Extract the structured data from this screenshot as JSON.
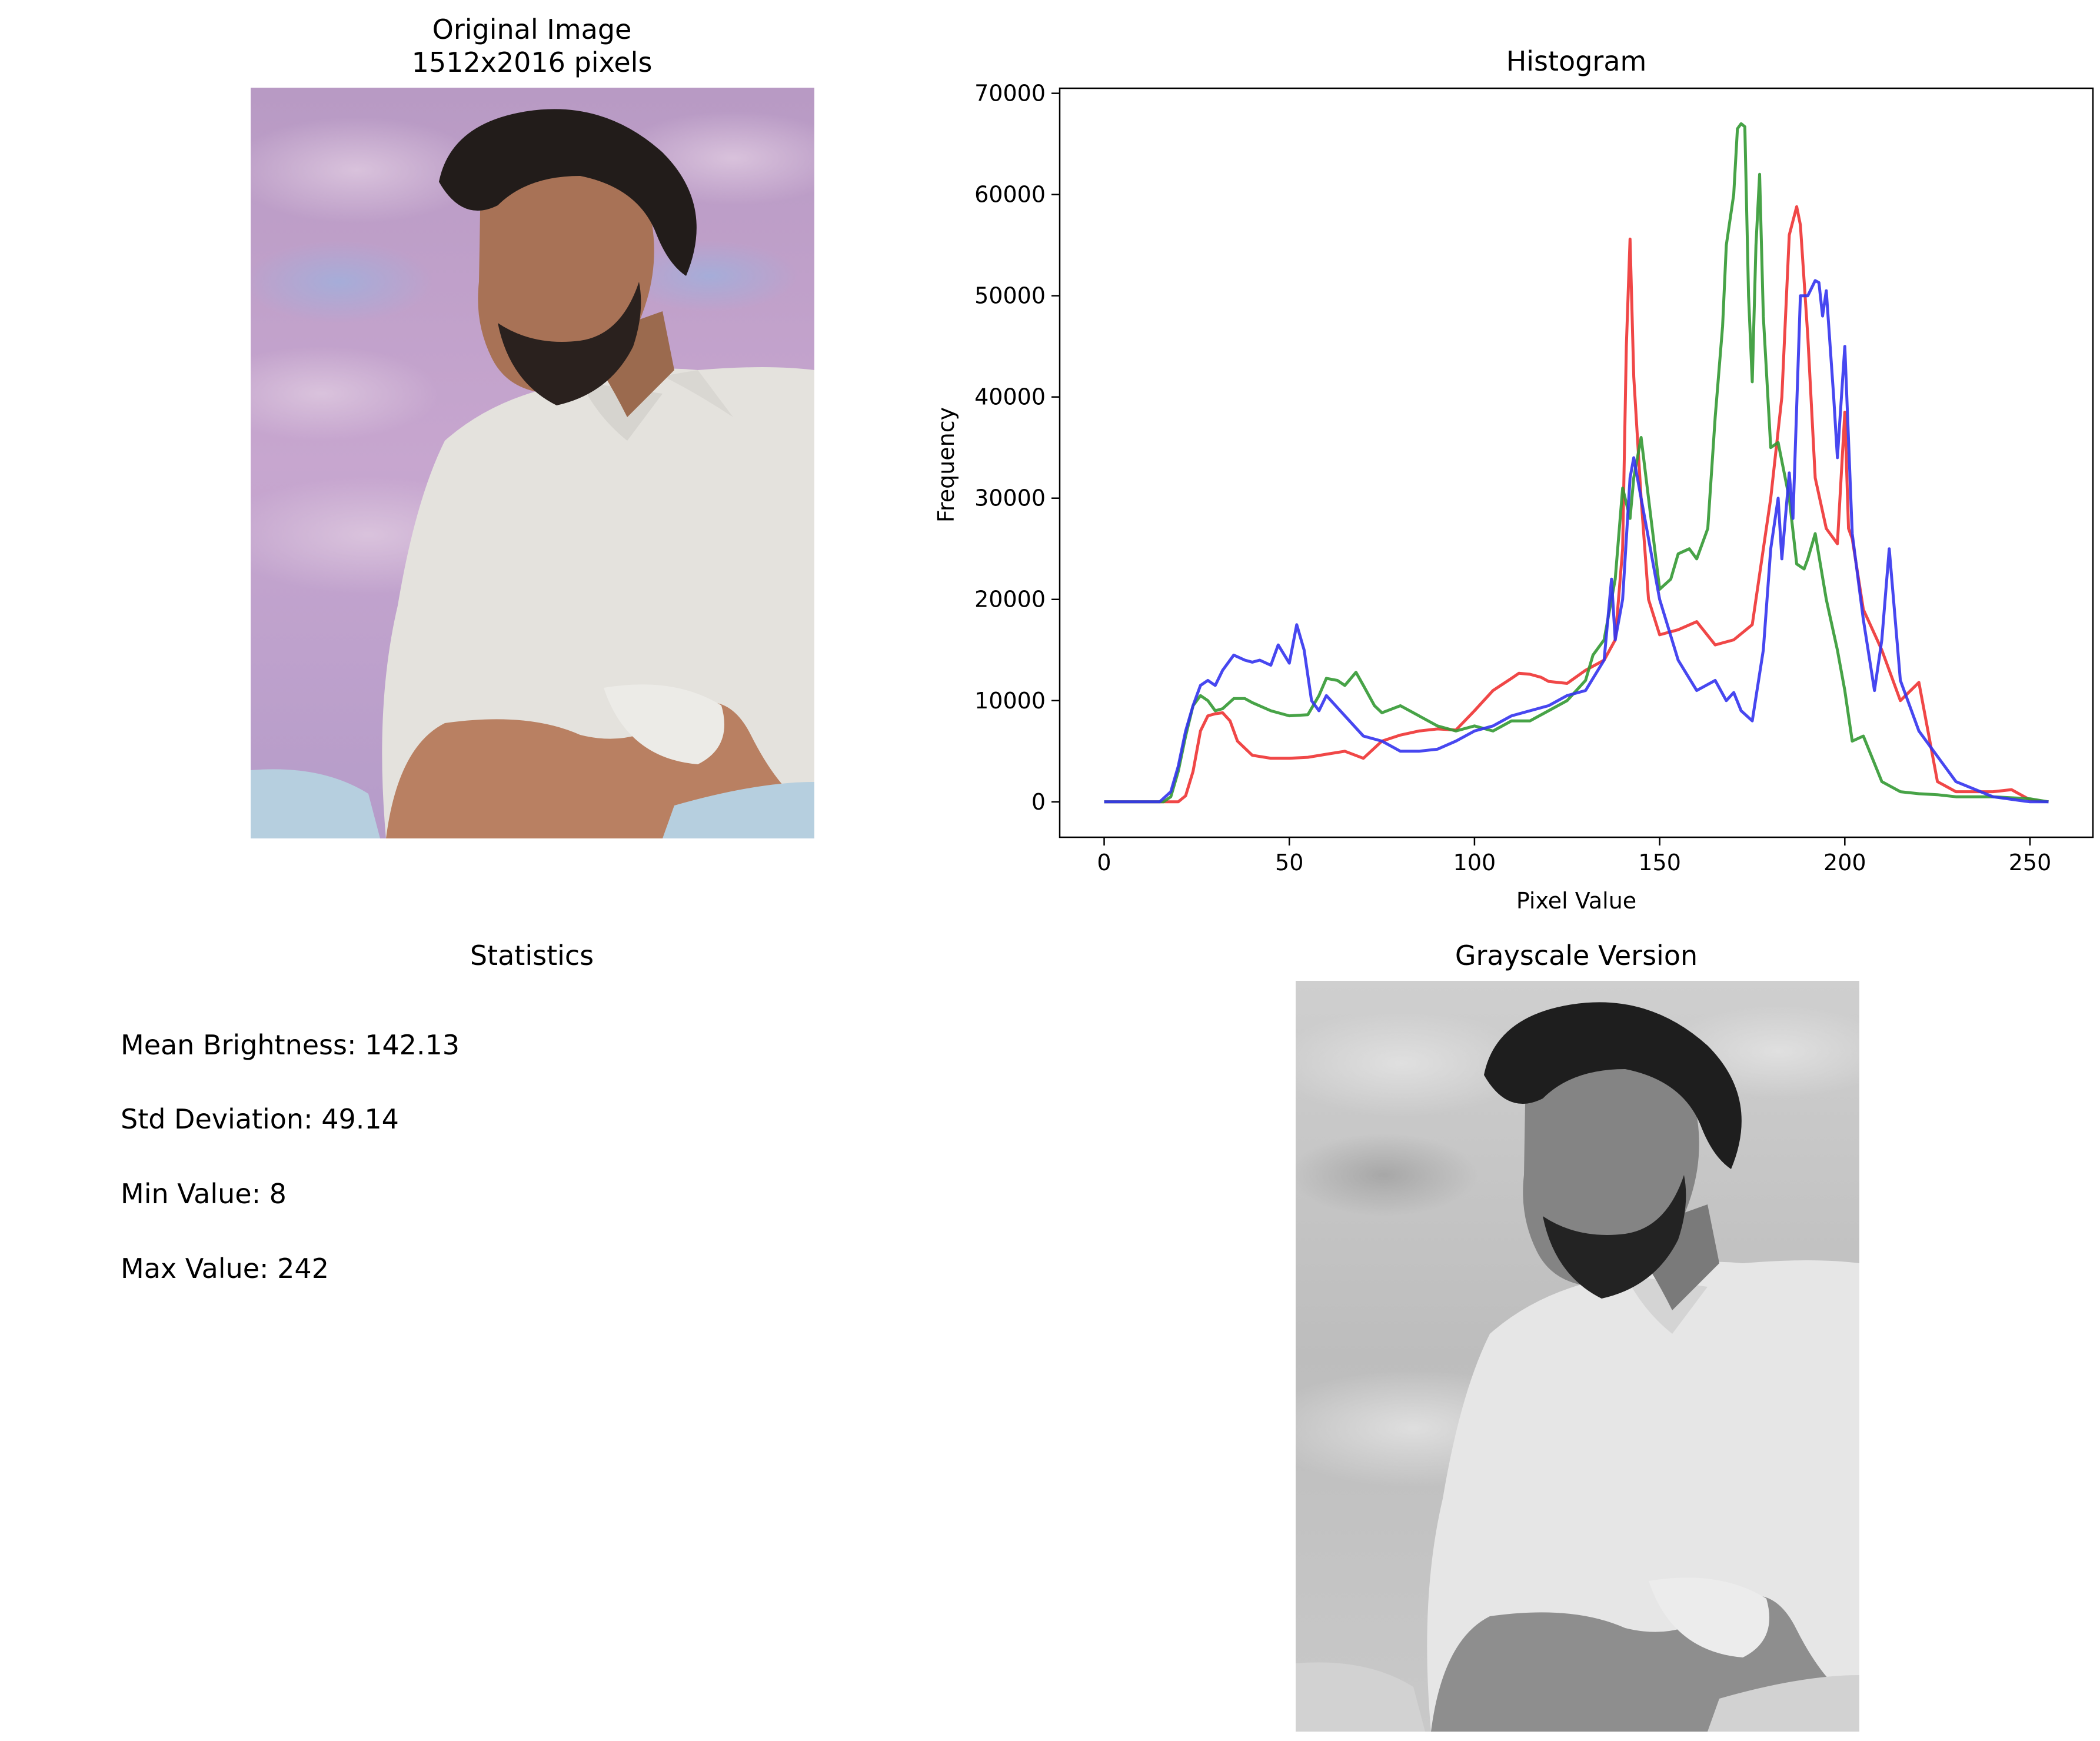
{
  "original": {
    "title": "Original Image",
    "subtitle": "1512x2016 pixels"
  },
  "statistics": {
    "title": "Statistics",
    "lines": [
      "Mean Brightness: 142.13",
      "Std Deviation: 49.14",
      "Min Value: 8",
      "Max Value: 242"
    ]
  },
  "grayscale": {
    "title": "Grayscale Version"
  },
  "colors": {
    "red": "#ee3333",
    "green": "#339933",
    "blue": "#3333ee",
    "photo_sky": "#c9a7cf",
    "photo_shirt": "#e3e1dc",
    "gray_sky": "#c4c4c4"
  },
  "chart_data": {
    "type": "line",
    "title": "Histogram",
    "xlabel": "Pixel Value",
    "ylabel": "Frequency",
    "xlim": [
      -12,
      267
    ],
    "ylim": [
      -3500,
      70500
    ],
    "xticks": [
      0,
      50,
      100,
      150,
      200,
      250
    ],
    "yticks": [
      0,
      10000,
      20000,
      30000,
      40000,
      50000,
      60000,
      70000
    ],
    "grid": false,
    "legend": "none",
    "series": [
      {
        "color": "red",
        "x": [
          0,
          10,
          16,
          20,
          22,
          24,
          26,
          28,
          30,
          32,
          34,
          36,
          40,
          45,
          50,
          55,
          60,
          65,
          70,
          75,
          80,
          85,
          90,
          95,
          100,
          105,
          110,
          112,
          115,
          118,
          120,
          125,
          130,
          135,
          138,
          140,
          141,
          142,
          143,
          145,
          147,
          150,
          155,
          160,
          165,
          170,
          175,
          180,
          183,
          185,
          187,
          188,
          190,
          192,
          195,
          198,
          200,
          201,
          202,
          205,
          210,
          215,
          220,
          225,
          230,
          240,
          245,
          250,
          255
        ],
        "values": [
          0,
          0,
          0,
          0,
          600,
          3000,
          7000,
          8500,
          8700,
          8800,
          8000,
          6000,
          4600,
          4300,
          4300,
          4400,
          4700,
          5000,
          4300,
          6000,
          6600,
          7000,
          7200,
          7100,
          9000,
          11000,
          12200,
          12700,
          12600,
          12300,
          11900,
          11700,
          13000,
          14000,
          16000,
          25000,
          45000,
          55600,
          42000,
          30000,
          20000,
          16500,
          17000,
          17800,
          15500,
          16000,
          17500,
          30000,
          40000,
          56000,
          58800,
          57000,
          46000,
          32000,
          27000,
          25500,
          38500,
          27000,
          26000,
          19000,
          15000,
          10000,
          11800,
          2000,
          1000,
          1000,
          1200,
          200,
          0
        ]
      },
      {
        "color": "green",
        "x": [
          0,
          10,
          16,
          18,
          20,
          22,
          24,
          26,
          28,
          30,
          32,
          35,
          38,
          40,
          45,
          50,
          55,
          58,
          60,
          63,
          65,
          68,
          70,
          73,
          75,
          80,
          85,
          90,
          95,
          100,
          105,
          110,
          115,
          120,
          125,
          130,
          132,
          135,
          138,
          140,
          142,
          143,
          145,
          148,
          150,
          153,
          155,
          158,
          160,
          163,
          165,
          167,
          168,
          170,
          171,
          172,
          173,
          174,
          175,
          176,
          177,
          178,
          180,
          182,
          185,
          187,
          189,
          190,
          192,
          195,
          198,
          200,
          202,
          205,
          210,
          215,
          220,
          225,
          230,
          240,
          250,
          255
        ],
        "values": [
          0,
          0,
          0,
          500,
          3000,
          6500,
          9500,
          10500,
          10000,
          9000,
          9200,
          10200,
          10200,
          9800,
          9000,
          8500,
          8600,
          10500,
          12200,
          12000,
          11500,
          12800,
          11500,
          9500,
          8800,
          9500,
          8500,
          7500,
          7000,
          7500,
          7000,
          8000,
          8000,
          9000,
          10000,
          12000,
          14500,
          16000,
          22000,
          31000,
          28000,
          32000,
          36000,
          27000,
          21000,
          22000,
          24500,
          25000,
          24000,
          27000,
          38000,
          47000,
          55000,
          60000,
          66500,
          67000,
          66700,
          50000,
          41500,
          55000,
          62000,
          48000,
          35000,
          35500,
          30000,
          23500,
          23000,
          24000,
          26500,
          20000,
          15000,
          11000,
          6000,
          6500,
          2000,
          1000,
          800,
          700,
          500,
          500,
          300,
          0
        ]
      },
      {
        "color": "blue",
        "x": [
          0,
          10,
          15,
          18,
          20,
          22,
          24,
          26,
          28,
          30,
          32,
          35,
          38,
          40,
          42,
          45,
          47,
          50,
          52,
          54,
          56,
          58,
          60,
          65,
          70,
          75,
          80,
          85,
          90,
          95,
          100,
          105,
          110,
          115,
          120,
          125,
          130,
          135,
          137,
          138,
          140,
          142,
          143,
          145,
          150,
          155,
          160,
          165,
          168,
          170,
          172,
          175,
          178,
          180,
          182,
          183,
          185,
          186,
          188,
          190,
          192,
          193,
          194,
          195,
          197,
          198,
          200,
          202,
          205,
          208,
          210,
          212,
          215,
          220,
          230,
          240,
          250,
          255
        ],
        "values": [
          0,
          0,
          0,
          1000,
          3500,
          7000,
          9500,
          11500,
          12000,
          11500,
          13000,
          14500,
          14000,
          13800,
          14000,
          13500,
          15500,
          13700,
          17500,
          15000,
          10000,
          9000,
          10500,
          8500,
          6500,
          6000,
          5000,
          5000,
          5200,
          6000,
          7000,
          7500,
          8500,
          9000,
          9500,
          10500,
          11000,
          14000,
          22000,
          16000,
          20000,
          32000,
          34000,
          30000,
          20000,
          14000,
          11000,
          12000,
          10000,
          10800,
          9000,
          8000,
          15000,
          25000,
          30000,
          24000,
          32500,
          28000,
          50000,
          50000,
          51500,
          51300,
          48000,
          50500,
          40000,
          34000,
          45000,
          26500,
          18000,
          11000,
          16000,
          25000,
          12000,
          7000,
          2000,
          500,
          0,
          0
        ]
      }
    ]
  }
}
